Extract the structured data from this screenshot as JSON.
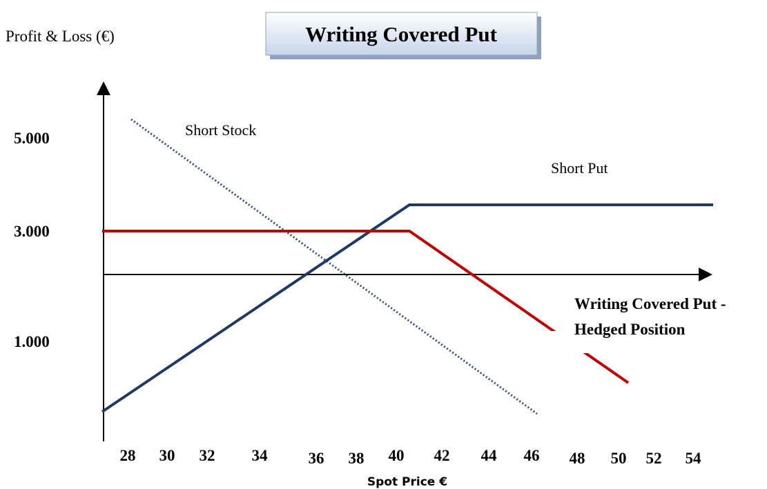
{
  "title": "Writing Covered Put",
  "y_axis_label": "Profit & Loss (€)",
  "x_axis_label": "Spot Price €",
  "y_tick_labels": [
    "5.000",
    "3.000",
    "1.000"
  ],
  "x_tick_labels": [
    "28",
    "30",
    "32",
    "34",
    "36",
    "38",
    "40",
    "42",
    "44",
    "46",
    "48",
    "50",
    "52",
    "54"
  ],
  "line_labels": {
    "short_stock": "Short Stock",
    "short_put": "Short Put",
    "hedged_line1": "Writing Covered Put -",
    "hedged_line2": "Hedged Position"
  }
}
